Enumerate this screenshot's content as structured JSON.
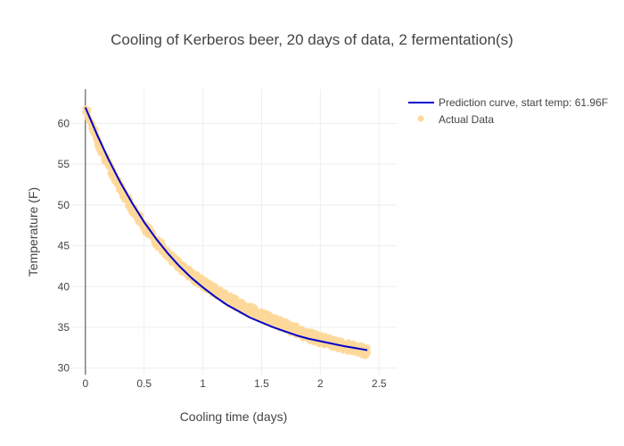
{
  "chart_data": {
    "type": "scatter",
    "title": "Cooling of Kerberos beer, 20 days of data, 2 fermentation(s)",
    "xlabel": "Cooling time (days)",
    "ylabel": "Temperature (F)",
    "xlim": [
      -0.12,
      2.65
    ],
    "ylim": [
      29.2,
      64.2
    ],
    "xticks": [
      0,
      0.5,
      1,
      1.5,
      2,
      2.5
    ],
    "xtick_labels": [
      "0",
      "0.5",
      "1",
      "1.5",
      "2",
      "2.5"
    ],
    "yticks": [
      30,
      35,
      40,
      45,
      50,
      55,
      60
    ],
    "ytick_labels": [
      "30",
      "35",
      "40",
      "45",
      "50",
      "55",
      "60"
    ],
    "grid": true,
    "legend_position": "top-right",
    "series": [
      {
        "name": "Prediction curve, start temp: 61.96F",
        "kind": "line",
        "color": "#0000cc",
        "x": [
          0,
          0.1,
          0.2,
          0.3,
          0.4,
          0.5,
          0.6,
          0.7,
          0.8,
          0.9,
          1.0,
          1.1,
          1.2,
          1.3,
          1.4,
          1.5,
          1.6,
          1.7,
          1.8,
          1.9,
          2.0,
          2.1,
          2.2,
          2.3,
          2.4
        ],
        "y": [
          61.96,
          58.6,
          55.5,
          52.7,
          50.2,
          47.9,
          45.9,
          44.1,
          42.5,
          41.1,
          39.9,
          38.8,
          37.8,
          37.0,
          36.2,
          35.6,
          35.0,
          34.5,
          34.0,
          33.6,
          33.3,
          33.0,
          32.7,
          32.45,
          32.2
        ]
      },
      {
        "name": "Actual Data",
        "kind": "scatter",
        "color": "#fdd89a",
        "x": [
          0,
          0.1,
          0.2,
          0.3,
          0.4,
          0.5,
          0.6,
          0.7,
          0.8,
          0.9,
          1.0,
          1.1,
          1.2,
          1.3,
          1.4,
          1.5,
          1.6,
          1.7,
          1.8,
          1.9,
          2.0,
          2.1,
          2.2,
          2.3,
          2.4
        ],
        "y": [
          61.9,
          58.0,
          54.8,
          52.0,
          49.6,
          47.5,
          45.6,
          44.0,
          42.6,
          41.4,
          40.4,
          39.5,
          38.6,
          37.8,
          37.1,
          36.4,
          35.8,
          35.2,
          34.6,
          34.0,
          33.5,
          33.1,
          32.7,
          32.4,
          32.0
        ]
      }
    ]
  }
}
